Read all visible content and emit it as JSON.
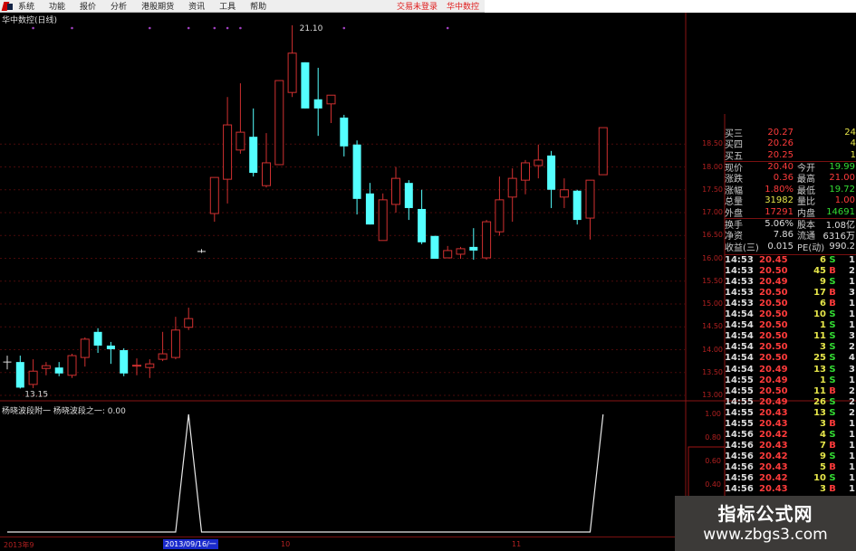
{
  "menu": {
    "items": [
      "系统",
      "功能",
      "报价",
      "分析",
      "港股期货",
      "资讯",
      "工具",
      "帮助"
    ],
    "right": [
      "交易未登录",
      "华中数控"
    ]
  },
  "chart": {
    "title": "华中数控(日线)",
    "high_label": "21.10",
    "low_label": "13.15",
    "price_ticks": [
      "18.50",
      "18.00",
      "17.50",
      "17.00",
      "16.50",
      "16.00",
      "15.50",
      "15.00",
      "14.50",
      "14.00",
      "13.50",
      "13.00"
    ],
    "colors": {
      "up": "#d03030",
      "down": "#54ffff",
      "flat": "#dddddd",
      "grid": "#4a0a0a"
    },
    "candles": [
      [
        13.73,
        13.73,
        13.87,
        13.57
      ],
      [
        13.73,
        13.17,
        13.87,
        13.15
      ],
      [
        13.24,
        13.53,
        13.79,
        13.16
      ],
      [
        13.59,
        13.65,
        13.73,
        13.44
      ],
      [
        13.61,
        13.48,
        13.73,
        13.42
      ],
      [
        13.44,
        13.87,
        13.91,
        13.38
      ],
      [
        13.83,
        14.23,
        14.27,
        13.63
      ],
      [
        14.39,
        14.09,
        14.47,
        13.93
      ],
      [
        14.09,
        14.01,
        14.17,
        13.69
      ],
      [
        13.99,
        13.48,
        14.03,
        13.42
      ],
      [
        13.65,
        13.66,
        13.81,
        13.44
      ],
      [
        13.61,
        13.69,
        13.79,
        13.38
      ],
      [
        13.79,
        13.91,
        14.39,
        13.75
      ],
      [
        13.83,
        14.43,
        14.72,
        13.79
      ],
      [
        14.49,
        14.68,
        14.92,
        14.43
      ],
      [
        16.15,
        16.15,
        16.2,
        16.12
      ],
      [
        16.98,
        17.77,
        17.77,
        16.8
      ],
      [
        17.73,
        18.92,
        19.53,
        17.2
      ],
      [
        18.37,
        18.76,
        19.83,
        18.29
      ],
      [
        18.66,
        17.87,
        19.28,
        17.79
      ],
      [
        17.59,
        18.09,
        18.74,
        17.55
      ],
      [
        18.05,
        19.89,
        19.89,
        18.05
      ],
      [
        19.63,
        20.49,
        21.1,
        19.53
      ],
      [
        20.29,
        19.28,
        20.29,
        19.28
      ],
      [
        19.48,
        19.28,
        20.17,
        18.68
      ],
      [
        19.38,
        19.57,
        19.57,
        18.96
      ],
      [
        19.08,
        18.45,
        19.14,
        18.23
      ],
      [
        18.49,
        17.3,
        18.58,
        16.96
      ],
      [
        17.42,
        16.74,
        17.65,
        16.74
      ],
      [
        16.39,
        17.28,
        17.42,
        16.39
      ],
      [
        17.18,
        17.75,
        18.0,
        17.0
      ],
      [
        17.65,
        17.1,
        17.71,
        16.84
      ],
      [
        17.08,
        16.35,
        17.5,
        16.31
      ],
      [
        16.49,
        15.99,
        16.49,
        15.99
      ],
      [
        16.01,
        16.17,
        16.27,
        16.01
      ],
      [
        16.09,
        16.21,
        16.25,
        15.99
      ],
      [
        16.25,
        16.17,
        16.66,
        15.97
      ],
      [
        16.01,
        16.8,
        16.84,
        15.97
      ],
      [
        16.58,
        17.28,
        17.79,
        16.5
      ],
      [
        17.34,
        17.75,
        17.97,
        16.8
      ],
      [
        17.71,
        18.09,
        18.15,
        17.4
      ],
      [
        18.03,
        18.15,
        18.49,
        17.75
      ],
      [
        18.25,
        17.5,
        18.35,
        17.1
      ],
      [
        17.34,
        17.5,
        17.75,
        17.1
      ],
      [
        17.48,
        16.84,
        17.5,
        16.74
      ],
      [
        16.88,
        17.71,
        17.71,
        16.41
      ],
      [
        17.83,
        18.86,
        18.86,
        17.83
      ]
    ],
    "top_markers": [
      2,
      5,
      11,
      14,
      16,
      17,
      18,
      26,
      34
    ]
  },
  "indicator": {
    "label": "杨晓波段附一  杨晓波段之一: 0.00",
    "ticks": [
      "1.00",
      "0.80",
      "0.60",
      "0.40"
    ],
    "signal_candles": [
      14,
      46
    ],
    "ylim": [
      0,
      1
    ]
  },
  "xaxis": {
    "labels": [
      "2013年9",
      "2013/09/16/一",
      "10",
      "11"
    ]
  },
  "quote": {
    "asks": [
      {
        "label": "买三",
        "price": "20.27",
        "vol": "24"
      },
      {
        "label": "买四",
        "price": "20.26",
        "vol": "4"
      },
      {
        "label": "买五",
        "price": "20.25",
        "vol": "1"
      }
    ],
    "stats": [
      {
        "l1": "现价",
        "v1": "20.40",
        "c1": "red",
        "l2": "今开",
        "v2": "19.99",
        "c2": "green"
      },
      {
        "l1": "涨跌",
        "v1": "0.36",
        "c1": "red",
        "l2": "最高",
        "v2": "21.00",
        "c2": "red"
      },
      {
        "l1": "涨幅",
        "v1": "1.80%",
        "c1": "red",
        "l2": "最低",
        "v2": "19.72",
        "c2": "green"
      },
      {
        "l1": "总量",
        "v1": "31982",
        "c1": "yellow",
        "l2": "量比",
        "v2": "1.00",
        "c2": "red"
      },
      {
        "l1": "外盘",
        "v1": "17291",
        "c1": "red",
        "l2": "内盘",
        "v2": "14691",
        "c2": "green"
      }
    ],
    "fund": [
      {
        "l1": "换手",
        "v1": "5.06%",
        "l2": "股本",
        "v2": "1.08亿"
      },
      {
        "l1": "净资",
        "v1": "7.86",
        "l2": "流通",
        "v2": "6316万"
      },
      {
        "l1": "收益(三)",
        "v1": "0.015",
        "l2": "PE(动)",
        "v2": "990.2"
      }
    ],
    "ticks": [
      [
        "14:53",
        "20.45",
        "6",
        "S",
        "1"
      ],
      [
        "14:53",
        "20.50",
        "45",
        "B",
        "2"
      ],
      [
        "14:53",
        "20.49",
        "9",
        "S",
        "1"
      ],
      [
        "14:53",
        "20.50",
        "17",
        "B",
        "3"
      ],
      [
        "14:53",
        "20.50",
        "6",
        "B",
        "1"
      ],
      [
        "14:54",
        "20.50",
        "10",
        "S",
        "1"
      ],
      [
        "14:54",
        "20.50",
        "1",
        "S",
        "1"
      ],
      [
        "14:54",
        "20.50",
        "11",
        "S",
        "3"
      ],
      [
        "14:54",
        "20.50",
        "3",
        "S",
        "2"
      ],
      [
        "14:54",
        "20.50",
        "25",
        "S",
        "4"
      ],
      [
        "14:54",
        "20.49",
        "13",
        "S",
        "3"
      ],
      [
        "14:55",
        "20.49",
        "1",
        "S",
        "1"
      ],
      [
        "14:55",
        "20.50",
        "11",
        "B",
        "2"
      ],
      [
        "14:55",
        "20.49",
        "26",
        "S",
        "2"
      ],
      [
        "14:55",
        "20.43",
        "13",
        "S",
        "2"
      ],
      [
        "14:55",
        "20.43",
        "3",
        "B",
        "1"
      ],
      [
        "14:56",
        "20.42",
        "4",
        "S",
        "1"
      ],
      [
        "14:56",
        "20.43",
        "7",
        "B",
        "1"
      ],
      [
        "14:56",
        "20.42",
        "9",
        "S",
        "1"
      ],
      [
        "14:56",
        "20.43",
        "5",
        "B",
        "1"
      ],
      [
        "14:56",
        "20.42",
        "10",
        "S",
        "1"
      ],
      [
        "14:56",
        "20.43",
        "3",
        "B",
        "1"
      ]
    ]
  },
  "watermark": {
    "line1": "指标公式网",
    "line2": "www.zbgs3.com"
  }
}
